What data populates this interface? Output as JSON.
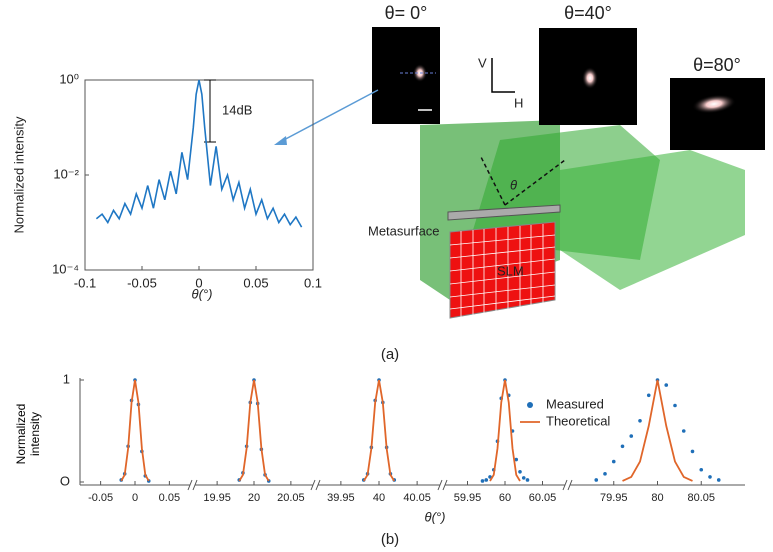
{
  "chart_data": [
    {
      "type": "line",
      "ylabel": "Normalized intensity",
      "xlabel": "θ(°)",
      "log_y": true,
      "xlim": [
        -0.1,
        0.1
      ],
      "xticks": [
        -0.1,
        -0.05,
        0,
        0.05,
        0.1
      ],
      "ylim": [
        0.0001,
        1
      ],
      "yticks": [
        {
          "value": 1,
          "label": "10⁰"
        },
        {
          "value": 0.01,
          "label": "10⁻²"
        },
        {
          "value": 0.0001,
          "label": "10⁻⁴"
        }
      ],
      "annotation": "14dB",
      "series": [
        {
          "color": "#1f77c4",
          "x": [
            -0.09,
            -0.085,
            -0.08,
            -0.075,
            -0.07,
            -0.065,
            -0.06,
            -0.055,
            -0.05,
            -0.045,
            -0.04,
            -0.035,
            -0.03,
            -0.025,
            -0.02,
            -0.015,
            -0.01,
            -0.005,
            -0.0025,
            0,
            0.0025,
            0.005,
            0.01,
            0.015,
            0.02,
            0.025,
            0.03,
            0.035,
            0.04,
            0.045,
            0.05,
            0.055,
            0.06,
            0.065,
            0.07,
            0.075,
            0.08,
            0.085,
            0.09
          ],
          "values": [
            0.0012,
            0.0015,
            0.001,
            0.0018,
            0.0012,
            0.0025,
            0.0015,
            0.004,
            0.002,
            0.006,
            0.002,
            0.008,
            0.003,
            0.012,
            0.004,
            0.03,
            0.008,
            0.1,
            0.5,
            1,
            0.5,
            0.1,
            0.006,
            0.04,
            0.005,
            0.01,
            0.003,
            0.007,
            0.002,
            0.005,
            0.0015,
            0.003,
            0.0012,
            0.002,
            0.001,
            0.0015,
            0.0009,
            0.0013,
            0.0008
          ]
        }
      ]
    },
    {
      "type": "broken-line",
      "ylabel": "Normalized intensity",
      "xlabel": "θ(°)",
      "ylim": [
        0,
        1
      ],
      "yticks": [
        {
          "value": 0,
          "label": "O"
        },
        1
      ],
      "panels": [
        {
          "xlim": [
            -0.08,
            0.08
          ],
          "xticks": [
            -0.05,
            0,
            0.05
          ]
        },
        {
          "xlim": [
            19.92,
            20.08
          ],
          "xticks": [
            19.95,
            20,
            20.05
          ]
        },
        {
          "xlim": [
            39.92,
            40.08
          ],
          "xticks": [
            39.95,
            40,
            40.05
          ]
        },
        {
          "xlim": [
            59.92,
            60.08
          ],
          "xticks": [
            59.95,
            60,
            60.05
          ]
        },
        {
          "xlim": [
            79.9,
            80.1
          ],
          "xticks": [
            79.95,
            80,
            80.05
          ]
        }
      ],
      "series": [
        {
          "name": "Measured",
          "color": "#1f6fb8",
          "marker": "dots",
          "panels": [
            {
              "x": [
                -0.02,
                -0.015,
                -0.01,
                -0.005,
                0,
                0.005,
                0.01,
                0.015,
                0.02
              ],
              "values": [
                0.02,
                0.08,
                0.35,
                0.8,
                1,
                0.76,
                0.3,
                0.06,
                0.01
              ]
            },
            {
              "x": [
                19.98,
                19.985,
                19.99,
                19.995,
                20,
                20.005,
                20.01,
                20.015,
                20.02
              ],
              "values": [
                0.02,
                0.09,
                0.35,
                0.78,
                1,
                0.77,
                0.32,
                0.07,
                0.01
              ]
            },
            {
              "x": [
                39.98,
                39.985,
                39.99,
                39.995,
                40,
                40.005,
                40.01,
                40.015,
                40.02
              ],
              "values": [
                0.02,
                0.08,
                0.34,
                0.8,
                1,
                0.78,
                0.34,
                0.08,
                0.02
              ]
            },
            {
              "x": [
                59.97,
                59.975,
                59.98,
                59.985,
                59.99,
                59.995,
                60,
                60.005,
                60.01,
                60.015,
                60.02,
                60.025,
                60.03
              ],
              "values": [
                0.01,
                0.02,
                0.05,
                0.12,
                0.4,
                0.82,
                1,
                0.85,
                0.5,
                0.22,
                0.1,
                0.04,
                0.02
              ]
            },
            {
              "x": [
                79.93,
                79.94,
                79.95,
                79.96,
                79.97,
                79.98,
                79.99,
                80,
                80.01,
                80.02,
                80.03,
                80.04,
                80.05,
                80.06,
                80.07
              ],
              "values": [
                0.02,
                0.08,
                0.2,
                0.35,
                0.45,
                0.6,
                0.85,
                1,
                0.95,
                0.75,
                0.5,
                0.3,
                0.12,
                0.05,
                0.02
              ]
            }
          ]
        },
        {
          "name": "Theoretical",
          "color": "#e0662a",
          "marker": "line",
          "panels": [
            {
              "x": [
                -0.02,
                -0.015,
                -0.01,
                -0.005,
                0,
                0.005,
                0.01,
                0.015,
                0.02
              ],
              "values": [
                0.01,
                0.07,
                0.33,
                0.78,
                1,
                0.78,
                0.33,
                0.07,
                0.01
              ]
            },
            {
              "x": [
                19.98,
                19.985,
                19.99,
                19.995,
                20,
                20.005,
                20.01,
                20.015,
                20.02
              ],
              "values": [
                0.01,
                0.07,
                0.33,
                0.78,
                1,
                0.78,
                0.33,
                0.07,
                0.01
              ]
            },
            {
              "x": [
                39.98,
                39.985,
                39.99,
                39.995,
                40,
                40.005,
                40.01,
                40.015,
                40.02
              ],
              "values": [
                0.01,
                0.07,
                0.33,
                0.78,
                1,
                0.78,
                0.33,
                0.07,
                0.01
              ]
            },
            {
              "x": [
                59.98,
                59.985,
                59.99,
                59.995,
                60,
                60.005,
                60.01,
                60.015,
                60.02
              ],
              "values": [
                0.01,
                0.07,
                0.33,
                0.78,
                1,
                0.78,
                0.33,
                0.07,
                0.01
              ]
            },
            {
              "x": [
                79.96,
                79.97,
                79.98,
                79.99,
                80,
                80.01,
                80.02,
                80.03,
                80.04
              ],
              "values": [
                0.01,
                0.05,
                0.2,
                0.55,
                1,
                0.55,
                0.2,
                0.05,
                0.01
              ]
            }
          ]
        }
      ]
    }
  ],
  "diagram": {
    "captions": [
      "(a)",
      "(b)"
    ],
    "angles": [
      "θ= 0°",
      "θ=40°",
      "θ=80°"
    ],
    "axes": [
      "V",
      "H"
    ],
    "angle": "θ",
    "metasurface": "Metasurface",
    "slm": "SLM"
  }
}
